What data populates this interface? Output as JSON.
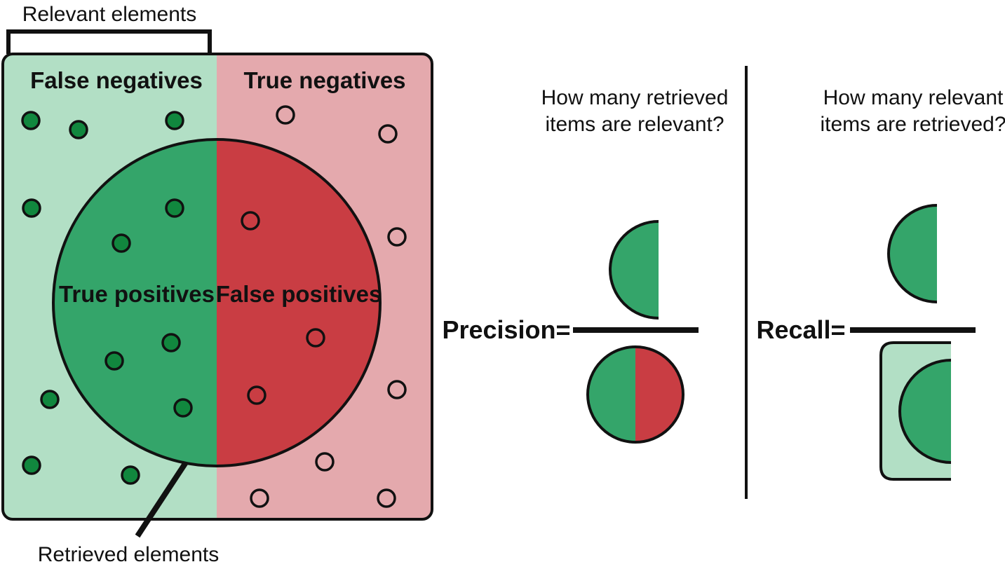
{
  "labels": {
    "relevant_elements": "Relevant elements",
    "retrieved_elements": "Retrieved elements",
    "false_negatives": "False negatives",
    "true_negatives": "True negatives",
    "true_positives": "True positives",
    "false_positives": "False positives"
  },
  "precision": {
    "question_line1": "How many retrieved",
    "question_line2": "items are relevant?",
    "label": "Precision="
  },
  "recall": {
    "question_line1": "How many relevant",
    "question_line2": "items are retrieved?",
    "label": "Recall="
  },
  "colors": {
    "relevant_light": "#b2dfc5",
    "nonrelevant_light": "#e4a9ad",
    "green": "#34a56a",
    "red": "#c93d43",
    "dot_green": "#11873e",
    "outline": "#111111"
  }
}
